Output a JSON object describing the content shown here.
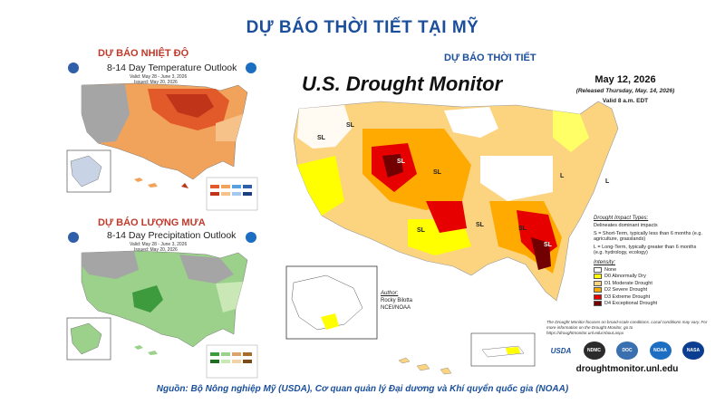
{
  "page": {
    "title": "DỰ BÁO THỜI TIẾT TẠI MỸ",
    "source": "Nguồn: Bộ Nông nghiệp Mỹ (USDA), Cơ quan quản lý Đại dương và Khí quyển quốc gia (NOAA)"
  },
  "temperature": {
    "section_title": "DỰ BÁO NHIỆT ĐỘ",
    "map_title": "8-14 Day Temperature Outlook",
    "valid": "Valid: May 28 - June 3, 2026",
    "issued": "Issued: May 20, 2026"
  },
  "precipitation": {
    "section_title": "DỰ BÁO LƯỢNG MƯA",
    "map_title": "8-14 Day Precipitation Outlook",
    "valid": "Valid: May 28 - June 3, 2026",
    "issued": "Issued: May 20, 2026"
  },
  "drought": {
    "section_title": "DỰ BÁO THỜI TIẾT",
    "title": "U.S. Drought Monitor",
    "date": "May 12, 2026",
    "released": "(Released Thursday, May. 14, 2026)",
    "valid": "Valid 8 a.m. EDT",
    "impact_heading": "Drought Impact Types:",
    "impact_items": [
      "Delineates dominant impacts",
      "S = Short-Term, typically less than 6 months (e.g. agriculture, grasslands)",
      "L = Long-Term, typically greater than 6 months (e.g. hydrology, ecology)"
    ],
    "intensity_heading": "Intensity:",
    "intensity_items": [
      {
        "label": "None",
        "color": "#ffffff"
      },
      {
        "label": "D0 Abnormally Dry",
        "color": "#ffff00"
      },
      {
        "label": "D1 Moderate Drought",
        "color": "#fcd37f"
      },
      {
        "label": "D2 Severe Drought",
        "color": "#ffaa00"
      },
      {
        "label": "D3 Extreme Drought",
        "color": "#e60000"
      },
      {
        "label": "D4 Exceptional Drought",
        "color": "#730000"
      }
    ],
    "author_heading": "Author:",
    "author_name": "Rocky Bilotta",
    "author_org": "NCEI/NOAA",
    "note": "The Drought Monitor focuses on broad-scale conditions. Local conditions may vary. For more information on the Drought Monitor, go to https://droughtmonitor.unl.edu/About.aspx",
    "url": "droughtmonitor.unl.edu",
    "logos": [
      "USDA",
      "NDMC",
      "DOC",
      "NOAA",
      "NASA"
    ],
    "map_labels": [
      "SL",
      "SL",
      "SL",
      "SL",
      "SL",
      "SL",
      "SL",
      "SL",
      "L",
      "L"
    ]
  }
}
